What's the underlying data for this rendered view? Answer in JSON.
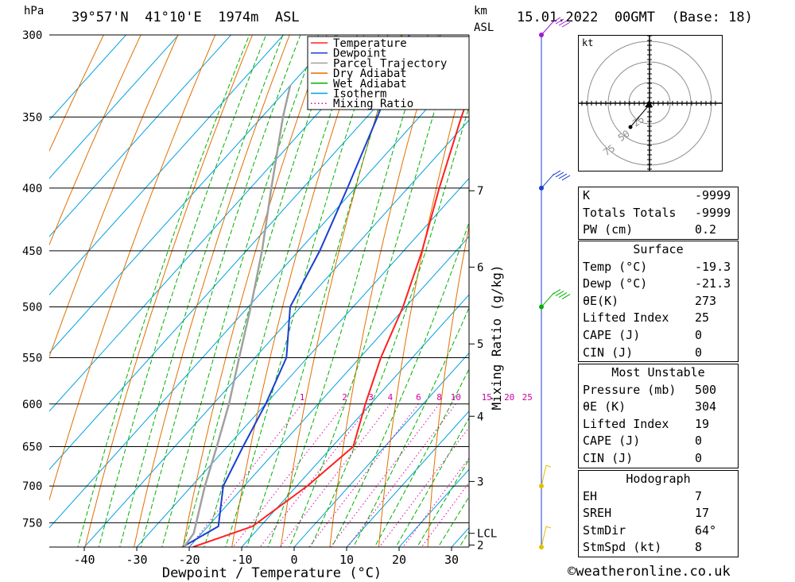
{
  "header": {
    "pressure_unit": "hPa",
    "location": "39°57'N  41°10'E  1974m  ASL",
    "height_unit": "km",
    "height_unit_2": "ASL",
    "datetime": "15.01.2022  00GMT  (Base: 18)"
  },
  "chart_data": {
    "type": "line",
    "xlabel": "Dewpoint / Temperature (°C)",
    "y2label": "Mixing Ratio (g/kg)",
    "x_ticks": [
      -40,
      -30,
      -20,
      -10,
      0,
      10,
      20,
      30
    ],
    "pressure_levels": [
      300,
      350,
      400,
      450,
      500,
      550,
      600,
      650,
      700,
      750
    ],
    "pressure_range": [
      300,
      785
    ],
    "height_km_ticks": [
      {
        "label": "7",
        "p": 402
      },
      {
        "label": "6",
        "p": 464
      },
      {
        "label": "5",
        "p": 536
      },
      {
        "label": "4",
        "p": 614
      },
      {
        "label": "3",
        "p": 694
      },
      {
        "label": "LCL",
        "p": 765
      },
      {
        "label": "2",
        "p": 782
      }
    ],
    "mixing_ratio_labels": [
      "1",
      "2",
      "3",
      "4",
      "6",
      "8",
      "10",
      "15",
      "20",
      "25"
    ],
    "mixing_ratio_values": [
      1,
      2,
      3,
      4,
      6,
      8,
      10,
      15,
      20,
      25
    ],
    "legend": [
      {
        "name": "Temperature",
        "color": "#ff2020",
        "style": "solid"
      },
      {
        "name": "Dewpoint",
        "color": "#1a3fd1",
        "style": "solid"
      },
      {
        "name": "Parcel Trajectory",
        "color": "#a0a0a0",
        "style": "solid"
      },
      {
        "name": "Dry Adiabat",
        "color": "#e07000",
        "style": "solid"
      },
      {
        "name": "Wet Adiabat",
        "color": "#00b000",
        "style": "solid"
      },
      {
        "name": "Isotherm",
        "color": "#00a0e0",
        "style": "solid"
      },
      {
        "name": "Mixing Ratio",
        "color": "#e000b0",
        "style": "dotted"
      }
    ],
    "series": [
      {
        "name": "Temperature",
        "points": [
          {
            "p": 785,
            "t": -19.3
          },
          {
            "p": 755,
            "t": -11.5
          },
          {
            "p": 700,
            "t": -8.0
          },
          {
            "p": 650,
            "t": -6.0
          },
          {
            "p": 600,
            "t": -11.0
          },
          {
            "p": 550,
            "t": -16.0
          },
          {
            "p": 500,
            "t": -20.5
          },
          {
            "p": 450,
            "t": -26.5
          },
          {
            "p": 400,
            "t": -34.0
          },
          {
            "p": 350,
            "t": -42.0
          },
          {
            "p": 300,
            "t": -50.5
          }
        ]
      },
      {
        "name": "Dewpoint",
        "points": [
          {
            "p": 785,
            "t": -21.3
          },
          {
            "p": 755,
            "t": -18.0
          },
          {
            "p": 700,
            "t": -24.0
          },
          {
            "p": 650,
            "t": -27.0
          },
          {
            "p": 600,
            "t": -30.0
          },
          {
            "p": 550,
            "t": -34.0
          },
          {
            "p": 500,
            "t": -42.0
          },
          {
            "p": 450,
            "t": -46.0
          },
          {
            "p": 400,
            "t": -51.5
          },
          {
            "p": 350,
            "t": -58.0
          },
          {
            "p": 300,
            "t": -66.0
          }
        ]
      },
      {
        "name": "Parcel Trajectory",
        "points": [
          {
            "p": 785,
            "t": -21.0
          },
          {
            "p": 765,
            "t": -21.5
          },
          {
            "p": 700,
            "t": -27.5
          },
          {
            "p": 650,
            "t": -32.0
          },
          {
            "p": 600,
            "t": -37.0
          },
          {
            "p": 550,
            "t": -43.0
          },
          {
            "p": 500,
            "t": -49.5
          },
          {
            "p": 450,
            "t": -57.0
          },
          {
            "p": 400,
            "t": -66.0
          },
          {
            "p": 350,
            "t": -76.0
          },
          {
            "p": 330,
            "t": -80.0
          }
        ]
      }
    ],
    "wind_barbs": [
      {
        "p": 300,
        "color": "#9a1ad0"
      },
      {
        "p": 400,
        "color": "#1a3fd1"
      },
      {
        "p": 500,
        "color": "#00b000"
      },
      {
        "p": 700,
        "color": "#e0c000"
      },
      {
        "p": 785,
        "color": "#e0c000"
      }
    ]
  },
  "hodograph": {
    "unit_label": "kt",
    "ring_labels": [
      "25",
      "50",
      "75"
    ]
  },
  "indices": {
    "top": [
      {
        "label": "K",
        "value": "-9999"
      },
      {
        "label": "Totals Totals",
        "value": "-9999"
      },
      {
        "label": "PW (cm)",
        "value": "0.2"
      }
    ],
    "surface": {
      "title": "Surface",
      "rows": [
        {
          "label": "Temp (°C)",
          "value": "-19.3"
        },
        {
          "label": "Dewp (°C)",
          "value": "-21.3"
        },
        {
          "label": "θE(K)",
          "value": "273"
        },
        {
          "label": "Lifted Index",
          "value": "25"
        },
        {
          "label": "CAPE (J)",
          "value": "0"
        },
        {
          "label": "CIN (J)",
          "value": "0"
        }
      ]
    },
    "most_unstable": {
      "title": "Most Unstable",
      "rows": [
        {
          "label": "Pressure (mb)",
          "value": "500"
        },
        {
          "label": "θE (K)",
          "value": "304"
        },
        {
          "label": "Lifted Index",
          "value": "19"
        },
        {
          "label": "CAPE (J)",
          "value": "0"
        },
        {
          "label": "CIN (J)",
          "value": "0"
        }
      ]
    },
    "hodograph_box": {
      "title": "Hodograph",
      "rows": [
        {
          "label": "EH",
          "value": "7"
        },
        {
          "label": "SREH",
          "value": "17"
        },
        {
          "label": "StmDir",
          "value": "64°"
        },
        {
          "label": "StmSpd (kt)",
          "value": "8"
        }
      ]
    }
  },
  "footer": "©weatheronline.co.uk"
}
